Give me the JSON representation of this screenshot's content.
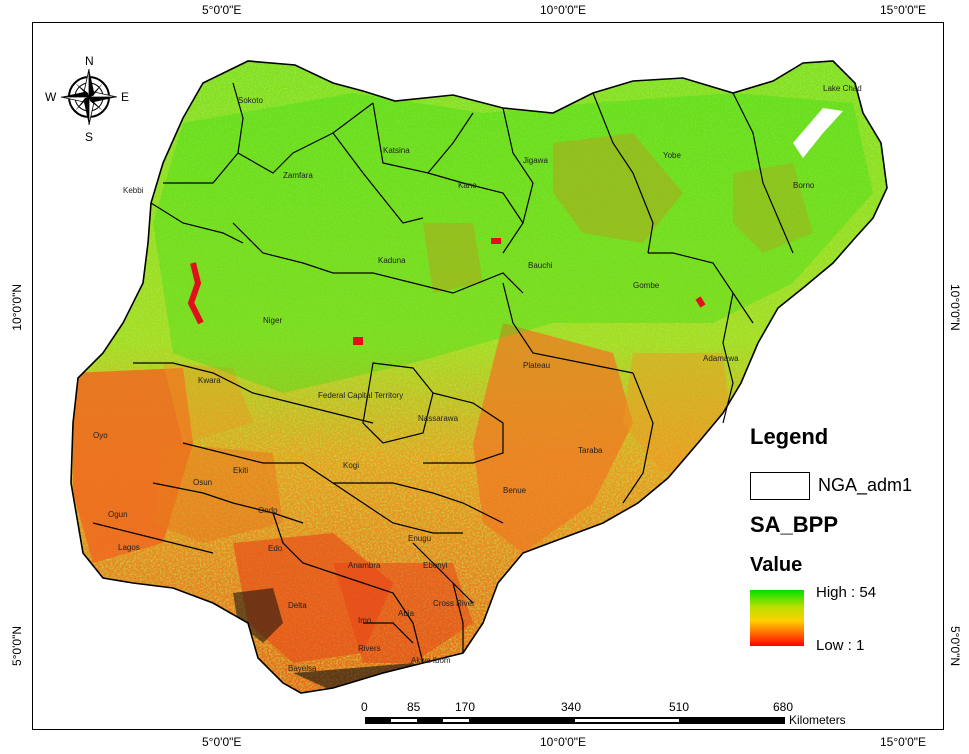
{
  "graticule": {
    "top": [
      "5°0'0\"E",
      "10°0'0\"E",
      "15°0'0\"E"
    ],
    "bottom": [
      "5°0'0\"E",
      "10°0'0\"E",
      "15°0'0\"E"
    ],
    "left": [
      "10°0'0\"N",
      "5°0'0\"N"
    ],
    "right": [
      "10°0'0\"N",
      "5°0'0\"N"
    ]
  },
  "compass": {
    "n": "N",
    "s": "S",
    "e": "E",
    "w": "W"
  },
  "legend": {
    "title": "Legend",
    "boundary_label": "NGA_adm1",
    "layer_name": "SA_BPP",
    "value_title": "Value",
    "high_label": "High : 54",
    "low_label": "Low : 1",
    "ramp_colors": [
      "#00e000",
      "#b8e000",
      "#ffd000",
      "#ff6000",
      "#ff0000"
    ]
  },
  "scalebar": {
    "ticks": [
      "0",
      "85",
      "170",
      "340",
      "510",
      "680"
    ],
    "unit": "Kilometers"
  },
  "states": [
    "Sokoto",
    "Katsina",
    "Zamfara",
    "Kano",
    "Jigawa",
    "Yobe",
    "Borno",
    "Lake Chad",
    "Kebbi",
    "Kaduna",
    "Bauchi",
    "Gombe",
    "Niger",
    "Kwara",
    "Federal Capital Territory",
    "Nassarawa",
    "Plateau",
    "Adamawa",
    "Oyo",
    "Taraba",
    "Kogi",
    "Osun",
    "Ekiti",
    "Ogun",
    "Ondo",
    "Lagos",
    "Benue",
    "Edo",
    "Enugu",
    "Anambra",
    "Ebonyi",
    "Delta",
    "Imo",
    "Abia",
    "Cross River",
    "Bayelsa",
    "Rivers",
    "Akwa Ibom"
  ],
  "colors": {
    "green": "#22dd11",
    "yellow": "#c8e020",
    "orange": "#ee8a22",
    "red": "#e8321a",
    "boundary": "#000000"
  }
}
